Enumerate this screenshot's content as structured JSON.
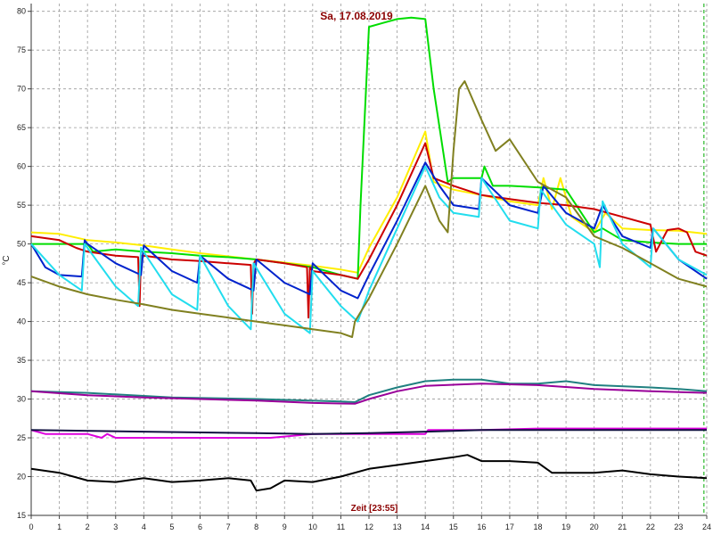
{
  "chart_data": {
    "type": "line",
    "title": "Sa, 17.08.2019",
    "xlabel": "Zeit [23:55]",
    "ylabel": "°C",
    "xlim": [
      0,
      24
    ],
    "ylim": [
      15,
      81
    ],
    "x_ticks": [
      0,
      1,
      2,
      3,
      4,
      5,
      6,
      7,
      8,
      9,
      10,
      11,
      12,
      13,
      14,
      15,
      16,
      17,
      18,
      19,
      20,
      21,
      22,
      23,
      24
    ],
    "y_ticks": [
      15,
      20,
      25,
      30,
      35,
      40,
      45,
      50,
      55,
      60,
      65,
      70,
      75,
      80
    ],
    "grid": true,
    "marker_x": 23.9,
    "series": [
      {
        "color": "#FFEE00",
        "points": [
          [
            0,
            51.5
          ],
          [
            1,
            51.3
          ],
          [
            2,
            50.5
          ],
          [
            3,
            50.2
          ],
          [
            4,
            49.8
          ],
          [
            5,
            49.3
          ],
          [
            6,
            48.8
          ],
          [
            7,
            48.4
          ],
          [
            8,
            48
          ],
          [
            9,
            47.6
          ],
          [
            10,
            47.2
          ],
          [
            11,
            46.7
          ],
          [
            11.6,
            46.3
          ],
          [
            12,
            49.5
          ],
          [
            13,
            56
          ],
          [
            14,
            64.5
          ],
          [
            14.3,
            58
          ],
          [
            15,
            57
          ],
          [
            16,
            56.3
          ],
          [
            17,
            55.5
          ],
          [
            18,
            55
          ],
          [
            18.2,
            58.5
          ],
          [
            18.5,
            54.5
          ],
          [
            18.8,
            58.5
          ],
          [
            19.2,
            53.5
          ],
          [
            20,
            51.5
          ],
          [
            20.4,
            54
          ],
          [
            21,
            52
          ],
          [
            22,
            51.8
          ],
          [
            23,
            51.7
          ],
          [
            24,
            51.3
          ]
        ]
      },
      {
        "color": "#00DD00",
        "points": [
          [
            0,
            50
          ],
          [
            1,
            50
          ],
          [
            2,
            50
          ],
          [
            2.2,
            49
          ],
          [
            3,
            49.3
          ],
          [
            4,
            49
          ],
          [
            5,
            48.8
          ],
          [
            6,
            48.5
          ],
          [
            7,
            48.3
          ],
          [
            8,
            48
          ],
          [
            9,
            47.5
          ],
          [
            10,
            47
          ],
          [
            11,
            46
          ],
          [
            11.6,
            45.5
          ],
          [
            11.7,
            55
          ],
          [
            12,
            78
          ],
          [
            12.5,
            78.5
          ],
          [
            13,
            79
          ],
          [
            13.5,
            79.2
          ],
          [
            14,
            79
          ],
          [
            14.3,
            70
          ],
          [
            14.8,
            58
          ],
          [
            15,
            58.5
          ],
          [
            16,
            58.5
          ],
          [
            16.1,
            60
          ],
          [
            16.4,
            57.5
          ],
          [
            17,
            57.5
          ],
          [
            18,
            57.3
          ],
          [
            19,
            57
          ],
          [
            20,
            51.5
          ],
          [
            20.3,
            52
          ],
          [
            21,
            50.5
          ],
          [
            22,
            50.2
          ],
          [
            23,
            50
          ],
          [
            24,
            50
          ]
        ]
      },
      {
        "color": "#CC0000",
        "points": [
          [
            0,
            51
          ],
          [
            1,
            50.5
          ],
          [
            1.6,
            49.5
          ],
          [
            2,
            49
          ],
          [
            3,
            48.5
          ],
          [
            3.8,
            48.3
          ],
          [
            3.85,
            42
          ],
          [
            3.9,
            48.5
          ],
          [
            4,
            48.5
          ],
          [
            5,
            48
          ],
          [
            6,
            47.8
          ],
          [
            7,
            47.5
          ],
          [
            7.8,
            47.3
          ],
          [
            7.85,
            41
          ],
          [
            7.9,
            47.5
          ],
          [
            8,
            48
          ],
          [
            9,
            47.5
          ],
          [
            9.8,
            47
          ],
          [
            9.85,
            40.5
          ],
          [
            9.9,
            47
          ],
          [
            10,
            46.5
          ],
          [
            11,
            46
          ],
          [
            11.6,
            45.5
          ],
          [
            12,
            48
          ],
          [
            13,
            55
          ],
          [
            14,
            63
          ],
          [
            14.3,
            58.5
          ],
          [
            15,
            57.5
          ],
          [
            16,
            56.3
          ],
          [
            17,
            55.8
          ],
          [
            18,
            55.3
          ],
          [
            19,
            55
          ],
          [
            20,
            54.5
          ],
          [
            21,
            53.5
          ],
          [
            22,
            52.5
          ],
          [
            22.2,
            49
          ],
          [
            22.6,
            51.8
          ],
          [
            23,
            52
          ],
          [
            23.3,
            51.5
          ],
          [
            23.6,
            49
          ],
          [
            24,
            48.5
          ]
        ]
      },
      {
        "color": "#0022CC",
        "points": [
          [
            0,
            50
          ],
          [
            0.5,
            47
          ],
          [
            1,
            46
          ],
          [
            1.8,
            45.8
          ],
          [
            1.9,
            50.5
          ],
          [
            2,
            50
          ],
          [
            3,
            47.5
          ],
          [
            3.9,
            46
          ],
          [
            4,
            49.8
          ],
          [
            5,
            46.5
          ],
          [
            5.9,
            45
          ],
          [
            6,
            48.5
          ],
          [
            7,
            45.5
          ],
          [
            7.9,
            44
          ],
          [
            8,
            48
          ],
          [
            9,
            45
          ],
          [
            9.9,
            43.5
          ],
          [
            10,
            47.5
          ],
          [
            11,
            44
          ],
          [
            11.6,
            43
          ],
          [
            12,
            46
          ],
          [
            13,
            53
          ],
          [
            14,
            60.5
          ],
          [
            14.5,
            57.5
          ],
          [
            15,
            55
          ],
          [
            15.9,
            54.5
          ],
          [
            16,
            58.5
          ],
          [
            17,
            55
          ],
          [
            18,
            54
          ],
          [
            18.2,
            57.5
          ],
          [
            19,
            54
          ],
          [
            20,
            52
          ],
          [
            20.3,
            55
          ],
          [
            21,
            51
          ],
          [
            22,
            49.5
          ],
          [
            22.1,
            52
          ],
          [
            23,
            48
          ],
          [
            24,
            45.5
          ]
        ]
      },
      {
        "color": "#22DDEE",
        "points": [
          [
            0,
            50
          ],
          [
            1,
            46
          ],
          [
            1.8,
            44
          ],
          [
            1.9,
            50
          ],
          [
            3,
            44.5
          ],
          [
            3.8,
            42
          ],
          [
            3.9,
            49.5
          ],
          [
            5,
            43.5
          ],
          [
            5.9,
            41.5
          ],
          [
            6,
            48.5
          ],
          [
            7,
            42
          ],
          [
            7.8,
            39
          ],
          [
            7.9,
            47.5
          ],
          [
            9,
            41
          ],
          [
            9.9,
            38.5
          ],
          [
            10,
            46.5
          ],
          [
            11,
            42
          ],
          [
            11.6,
            40
          ],
          [
            12,
            44
          ],
          [
            13,
            52
          ],
          [
            14,
            60
          ],
          [
            14.5,
            56
          ],
          [
            15,
            54
          ],
          [
            15.9,
            53.5
          ],
          [
            16,
            58.5
          ],
          [
            17,
            53
          ],
          [
            18,
            52
          ],
          [
            18.1,
            57
          ],
          [
            19,
            52.5
          ],
          [
            20,
            50
          ],
          [
            20.2,
            47
          ],
          [
            20.3,
            55.5
          ],
          [
            21,
            50
          ],
          [
            22,
            47
          ],
          [
            22.1,
            52
          ],
          [
            23,
            48
          ],
          [
            24,
            46
          ]
        ]
      },
      {
        "color": "#808020",
        "points": [
          [
            0,
            45.8
          ],
          [
            1,
            44.5
          ],
          [
            2,
            43.5
          ],
          [
            3,
            42.8
          ],
          [
            4,
            42.2
          ],
          [
            5,
            41.5
          ],
          [
            6,
            41
          ],
          [
            7,
            40.5
          ],
          [
            8,
            40
          ],
          [
            9,
            39.5
          ],
          [
            10,
            39
          ],
          [
            11,
            38.5
          ],
          [
            11.4,
            38
          ],
          [
            11.5,
            40
          ],
          [
            12,
            43
          ],
          [
            13,
            50
          ],
          [
            14,
            57.5
          ],
          [
            14.5,
            53
          ],
          [
            14.8,
            51.5
          ],
          [
            15,
            62
          ],
          [
            15.2,
            70
          ],
          [
            15.4,
            71
          ],
          [
            16,
            66
          ],
          [
            16.5,
            62
          ],
          [
            17,
            63.5
          ],
          [
            18,
            58
          ],
          [
            19,
            56
          ],
          [
            20,
            51
          ],
          [
            21,
            49.5
          ],
          [
            22,
            47.5
          ],
          [
            23,
            45.5
          ],
          [
            24,
            44.5
          ]
        ]
      },
      {
        "color": "#208080",
        "points": [
          [
            0,
            31
          ],
          [
            2,
            30.8
          ],
          [
            5,
            30.2
          ],
          [
            8,
            30
          ],
          [
            11,
            29.7
          ],
          [
            11.5,
            29.6
          ],
          [
            12,
            30.5
          ],
          [
            13,
            31.5
          ],
          [
            14,
            32.3
          ],
          [
            15,
            32.5
          ],
          [
            16,
            32.5
          ],
          [
            17,
            32
          ],
          [
            18,
            32
          ],
          [
            19,
            32.3
          ],
          [
            20,
            31.8
          ],
          [
            22,
            31.5
          ],
          [
            23,
            31.3
          ],
          [
            24,
            31
          ]
        ]
      },
      {
        "color": "#990099",
        "points": [
          [
            0,
            31
          ],
          [
            2,
            30.5
          ],
          [
            4,
            30.2
          ],
          [
            6,
            30
          ],
          [
            8,
            29.8
          ],
          [
            10,
            29.5
          ],
          [
            11.5,
            29.4
          ],
          [
            12,
            30
          ],
          [
            13,
            31
          ],
          [
            14,
            31.7
          ],
          [
            16,
            32
          ],
          [
            18,
            31.8
          ],
          [
            20,
            31.3
          ],
          [
            22,
            31
          ],
          [
            24,
            30.8
          ]
        ]
      },
      {
        "color": "#DD00DD",
        "points": [
          [
            0,
            26
          ],
          [
            0.5,
            25.5
          ],
          [
            2,
            25.5
          ],
          [
            2.5,
            25
          ],
          [
            2.7,
            25.5
          ],
          [
            3,
            25
          ],
          [
            4,
            25
          ],
          [
            6,
            25
          ],
          [
            8,
            25
          ],
          [
            8.5,
            25
          ],
          [
            10,
            25.5
          ],
          [
            12,
            25.5
          ],
          [
            14,
            25.5
          ],
          [
            14.1,
            26
          ],
          [
            16,
            26
          ],
          [
            18,
            26.2
          ],
          [
            20,
            26.2
          ],
          [
            22,
            26.2
          ],
          [
            24,
            26.2
          ]
        ]
      },
      {
        "color": "#101040",
        "points": [
          [
            0,
            26
          ],
          [
            4,
            25.8
          ],
          [
            8,
            25.6
          ],
          [
            10,
            25.5
          ],
          [
            12,
            25.6
          ],
          [
            14,
            25.8
          ],
          [
            16,
            26
          ],
          [
            18,
            26
          ],
          [
            20,
            26
          ],
          [
            22,
            26
          ],
          [
            24,
            26
          ]
        ]
      },
      {
        "color": "#000000",
        "points": [
          [
            0,
            21
          ],
          [
            1,
            20.5
          ],
          [
            2,
            19.5
          ],
          [
            3,
            19.3
          ],
          [
            4,
            19.8
          ],
          [
            5,
            19.3
          ],
          [
            6,
            19.5
          ],
          [
            7,
            19.8
          ],
          [
            7.8,
            19.5
          ],
          [
            8,
            18.2
          ],
          [
            8.5,
            18.5
          ],
          [
            9,
            19.5
          ],
          [
            10,
            19.3
          ],
          [
            11,
            20
          ],
          [
            12,
            21
          ],
          [
            13,
            21.5
          ],
          [
            14,
            22
          ],
          [
            15,
            22.5
          ],
          [
            15.5,
            22.8
          ],
          [
            16,
            22
          ],
          [
            17,
            22
          ],
          [
            18,
            21.8
          ],
          [
            18.5,
            20.5
          ],
          [
            19,
            20.5
          ],
          [
            20,
            20.5
          ],
          [
            21,
            20.8
          ],
          [
            22,
            20.3
          ],
          [
            23,
            20
          ],
          [
            24,
            19.8
          ]
        ]
      }
    ]
  }
}
